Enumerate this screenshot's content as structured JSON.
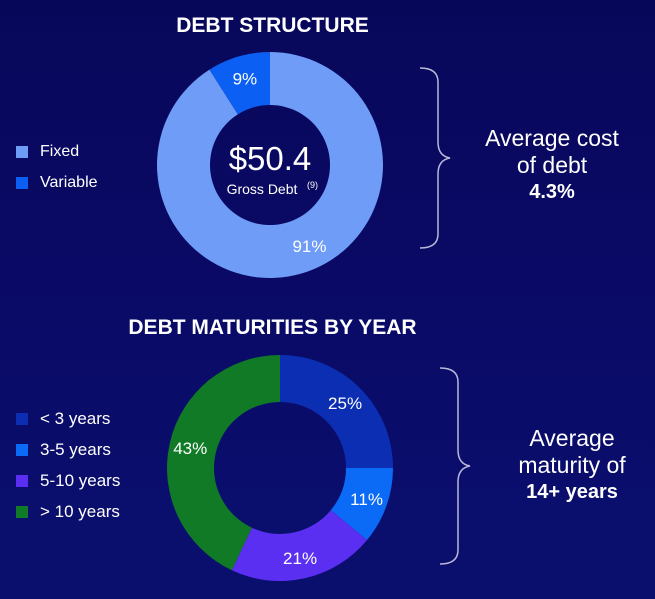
{
  "chart_data": [
    {
      "type": "pie",
      "title": "DEBT STRUCTURE",
      "categories": [
        "Fixed",
        "Variable"
      ],
      "values": [
        91,
        9
      ],
      "data_labels": [
        "91%",
        "9%"
      ],
      "colors": [
        "#6e9cf6",
        "#0b5ff2"
      ],
      "center_value": "$50.4",
      "center_label": "Gross Debt",
      "center_footnote": "(9)",
      "side_text": [
        "Average cost",
        "of debt"
      ],
      "side_value": "4.3%"
    },
    {
      "type": "pie",
      "title": "DEBT MATURITIES BY YEAR",
      "categories": [
        "< 3 years",
        "3-5 years",
        "5-10 years",
        "> 10 years"
      ],
      "values": [
        25,
        11,
        21,
        43
      ],
      "data_labels": [
        "25%",
        "11%",
        "21%",
        "43%"
      ],
      "colors": [
        "#0b2eb3",
        "#0b6af6",
        "#5a2ff2",
        "#107a26"
      ],
      "side_text": [
        "Average",
        "maturity of"
      ],
      "side_value": "14+ years"
    }
  ]
}
